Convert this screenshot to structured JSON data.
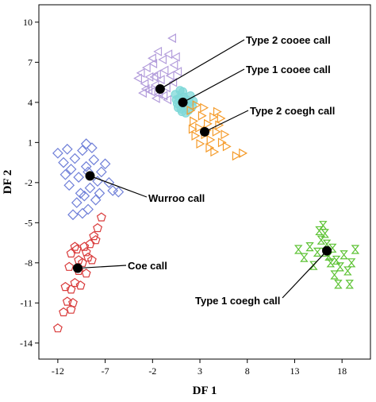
{
  "chart_data": {
    "type": "scatter",
    "xlabel": "DF 1",
    "ylabel": "DF 2",
    "xlim": [
      -14,
      21
    ],
    "ylim": [
      -15.2,
      11.3
    ],
    "xticks": [
      -12,
      -7,
      -2,
      3,
      8,
      13,
      18
    ],
    "yticks": [
      10,
      7,
      4,
      1,
      -2,
      -5,
      -8,
      -11,
      -14
    ],
    "grid": false,
    "legend": "none",
    "series": [
      {
        "key": "type2-cooee",
        "color": "#b39ddb",
        "marker": "triangle-left",
        "centroid": [
          -1.2,
          5.0
        ],
        "label": "Type 2 cooee call",
        "points": [
          [
            -3.5,
            5.8
          ],
          [
            -3.2,
            6.2
          ],
          [
            -2.8,
            5.4
          ],
          [
            -2.6,
            6.6
          ],
          [
            -2.3,
            5.9
          ],
          [
            -2.1,
            4.8
          ],
          [
            -1.9,
            6.9
          ],
          [
            -1.7,
            5.3
          ],
          [
            -1.5,
            6.1
          ],
          [
            -1.3,
            4.6
          ],
          [
            -1.1,
            5.7
          ],
          [
            -0.9,
            7.2
          ],
          [
            -0.7,
            6.4
          ],
          [
            -0.5,
            5.1
          ],
          [
            -0.3,
            7.6
          ],
          [
            -0.1,
            6.0
          ],
          [
            0.1,
            8.8
          ],
          [
            0.3,
            6.8
          ],
          [
            0.5,
            7.4
          ],
          [
            -2.4,
            4.9
          ],
          [
            -2.0,
            7.3
          ],
          [
            -1.6,
            4.3
          ],
          [
            -0.8,
            4.5
          ],
          [
            -3.0,
            4.7
          ],
          [
            0.2,
            5.5
          ],
          [
            -1.4,
            7.8
          ],
          [
            -2.7,
            5.0
          ],
          [
            -0.4,
            4.2
          ],
          [
            0.7,
            6.3
          ],
          [
            -1.8,
            5.9
          ]
        ]
      },
      {
        "key": "type1-cooee",
        "color": "#7fd8d8",
        "marker": "circle",
        "centroid": [
          1.2,
          4.0
        ],
        "label": "Type 1 cooee call",
        "points": [
          [
            0.4,
            4.6
          ],
          [
            0.6,
            3.9
          ],
          [
            0.8,
            4.3
          ],
          [
            1.0,
            3.5
          ],
          [
            1.2,
            4.8
          ],
          [
            1.4,
            3.8
          ],
          [
            1.6,
            4.2
          ],
          [
            1.8,
            3.4
          ],
          [
            2.0,
            4.5
          ],
          [
            2.2,
            3.7
          ],
          [
            0.9,
            4.9
          ],
          [
            1.5,
            3.2
          ],
          [
            1.1,
            3.3
          ],
          [
            1.9,
            4.0
          ],
          [
            0.7,
            3.6
          ],
          [
            2.3,
            4.1
          ],
          [
            1.3,
            4.4
          ],
          [
            0.5,
            4.2
          ]
        ]
      },
      {
        "key": "type2-coegh",
        "color": "#f59b2a",
        "marker": "triangle-right",
        "centroid": [
          3.5,
          1.8
        ],
        "label": "Type 2 coegh call",
        "points": [
          [
            2.0,
            3.4
          ],
          [
            2.3,
            2.6
          ],
          [
            2.6,
            3.8
          ],
          [
            2.9,
            2.1
          ],
          [
            3.2,
            3.0
          ],
          [
            3.5,
            1.6
          ],
          [
            3.8,
            2.4
          ],
          [
            4.1,
            1.2
          ],
          [
            4.4,
            2.9
          ],
          [
            4.7,
            1.8
          ],
          [
            5.0,
            2.3
          ],
          [
            5.3,
            1.0
          ],
          [
            5.6,
            1.6
          ],
          [
            3.0,
            0.9
          ],
          [
            2.5,
            1.5
          ],
          [
            3.4,
            3.6
          ],
          [
            4.0,
            0.6
          ],
          [
            4.8,
            3.3
          ],
          [
            5.8,
            0.7
          ],
          [
            6.8,
            0.0
          ],
          [
            7.5,
            0.2
          ],
          [
            3.7,
            1.9
          ],
          [
            2.2,
            2.0
          ],
          [
            4.5,
            0.3
          ],
          [
            5.2,
            2.8
          ]
        ]
      },
      {
        "key": "wurroo",
        "color": "#6f7fd8",
        "marker": "diamond",
        "centroid": [
          -8.6,
          -1.5
        ],
        "label": "Wurroo call",
        "points": [
          [
            -12.0,
            0.2
          ],
          [
            -11.4,
            -0.5
          ],
          [
            -11.0,
            0.5
          ],
          [
            -10.6,
            -1.0
          ],
          [
            -10.2,
            -0.2
          ],
          [
            -9.8,
            -1.6
          ],
          [
            -9.4,
            0.4
          ],
          [
            -9.0,
            -0.8
          ],
          [
            -8.6,
            -2.4
          ],
          [
            -8.2,
            -0.3
          ],
          [
            -7.8,
            -1.9
          ],
          [
            -7.4,
            -1.2
          ],
          [
            -7.0,
            -0.6
          ],
          [
            -6.6,
            -2.0
          ],
          [
            -6.2,
            -2.6
          ],
          [
            -5.6,
            -2.7
          ],
          [
            -9.6,
            -2.8
          ],
          [
            -10.0,
            -3.5
          ],
          [
            -9.2,
            -3.0
          ],
          [
            -8.8,
            -4.0
          ],
          [
            -9.4,
            -4.3
          ],
          [
            -10.4,
            -4.4
          ],
          [
            -8.0,
            -3.3
          ],
          [
            -9.0,
            0.9
          ],
          [
            -8.4,
            0.6
          ],
          [
            -10.8,
            -2.2
          ],
          [
            -7.6,
            -2.8
          ],
          [
            -11.2,
            -1.4
          ],
          [
            -8.8,
            -1.2
          ]
        ]
      },
      {
        "key": "coe",
        "color": "#d93a3a",
        "marker": "pentagon",
        "centroid": [
          -9.9,
          -8.4
        ],
        "label": "Coe call",
        "points": [
          [
            -12.0,
            -12.9
          ],
          [
            -11.4,
            -11.7
          ],
          [
            -11.0,
            -10.9
          ],
          [
            -10.6,
            -10.0
          ],
          [
            -10.2,
            -9.5
          ],
          [
            -9.8,
            -8.6
          ],
          [
            -9.4,
            -8.0
          ],
          [
            -9.0,
            -7.2
          ],
          [
            -8.6,
            -6.6
          ],
          [
            -8.2,
            -6.0
          ],
          [
            -7.8,
            -5.4
          ],
          [
            -7.4,
            -4.6
          ],
          [
            -10.6,
            -7.3
          ],
          [
            -10.2,
            -6.8
          ],
          [
            -9.6,
            -9.7
          ],
          [
            -8.8,
            -7.6
          ],
          [
            -10.8,
            -8.3
          ],
          [
            -10.0,
            -7.0
          ],
          [
            -9.2,
            -6.8
          ],
          [
            -8.4,
            -7.8
          ],
          [
            -11.2,
            -9.8
          ],
          [
            -10.4,
            -11.0
          ],
          [
            -9.8,
            -7.8
          ],
          [
            -8.0,
            -6.3
          ],
          [
            -10.6,
            -11.5
          ],
          [
            -9.0,
            -8.8
          ]
        ]
      },
      {
        "key": "type1-coegh",
        "color": "#5cc233",
        "marker": "hourglass",
        "centroid": [
          16.4,
          -7.1
        ],
        "label": "Type 1 coegh call",
        "points": [
          [
            13.4,
            -7.0
          ],
          [
            14.0,
            -7.6
          ],
          [
            14.6,
            -6.8
          ],
          [
            15.0,
            -8.2
          ],
          [
            15.4,
            -7.2
          ],
          [
            15.8,
            -6.3
          ],
          [
            16.0,
            -5.2
          ],
          [
            16.2,
            -5.8
          ],
          [
            16.4,
            -6.6
          ],
          [
            16.6,
            -7.5
          ],
          [
            16.8,
            -8.0
          ],
          [
            17.0,
            -6.9
          ],
          [
            17.4,
            -7.8
          ],
          [
            17.8,
            -8.3
          ],
          [
            18.2,
            -7.4
          ],
          [
            18.6,
            -8.6
          ],
          [
            19.0,
            -8.0
          ],
          [
            19.4,
            -7.0
          ],
          [
            15.6,
            -5.6
          ],
          [
            17.6,
            -9.6
          ],
          [
            18.8,
            -9.6
          ],
          [
            16.2,
            -7.2
          ],
          [
            17.2,
            -8.9
          ]
        ]
      }
    ]
  }
}
